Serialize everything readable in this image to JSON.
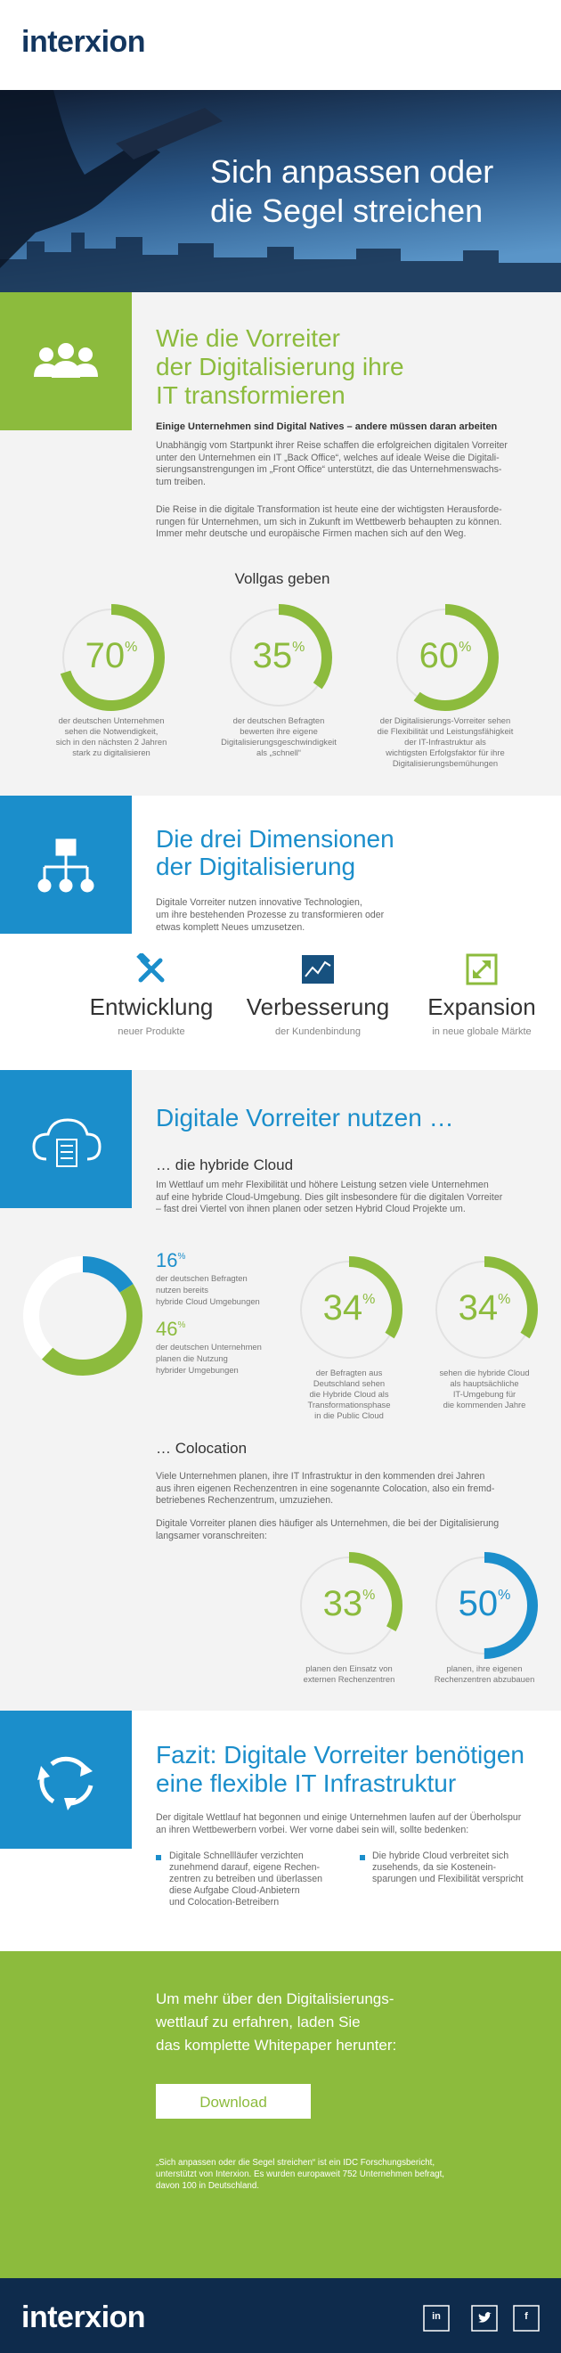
{
  "header": {
    "logo": "interxion"
  },
  "hero": {
    "title": [
      "Sich anpassen oder",
      "die Segel streichen"
    ]
  },
  "digitalization": {
    "title": [
      "Wie die Vorreiter",
      "der Digitalisierung ihre",
      "IT transformieren"
    ],
    "subheading": "Einige Unternehmen sind Digital Natives – andere müssen daran arbeiten",
    "paragraphs": [
      [
        "Unabhängig vom Startpunkt ihrer Reise schaffen die erfolgreichen digitalen Vorreiter",
        "unter den Unternehmen ein IT „Back Office“, welches auf ideale Weise die Digitali-",
        "sierungsanstrengungen im „Front Office“ unterstützt, die das Unternehmenswachs-",
        "tum treiben."
      ],
      [
        "Die Reise in die digitale Transformation ist heute eine der wichtigsten Herausforde-",
        "rungen für Unternehmen, um sich in Zukunft im Wettbewerb behaupten zu können.",
        "Immer mehr deutsche und europäische Firmen machen sich auf den Weg."
      ]
    ],
    "stats_heading": "Vollgas geben",
    "stats": [
      {
        "value": 70,
        "unit": "%",
        "color": "#8cbb3d",
        "caption": [
          "der deutschen Unternehmen",
          "sehen die Notwendigkeit,",
          "sich in den nächsten 2 Jahren",
          "stark zu digitalisieren"
        ]
      },
      {
        "value": 35,
        "unit": "%",
        "color": "#8cbb3d",
        "caption": [
          "der deutschen Befragten",
          "bewerten ihre eigene",
          "Digitalisierungsgeschwindigkeit",
          "als „schnell“"
        ]
      },
      {
        "value": 60,
        "unit": "%",
        "color": "#8cbb3d",
        "caption": [
          "der Digitalisierungs-Vorreiter sehen",
          "die Flexibilität und Leistungsfähigkeit",
          "der IT-Infrastruktur als",
          "wichtigsten Erfolgsfaktor für ihre",
          "Digitalisierungsbemühungen"
        ]
      }
    ]
  },
  "dimensions": {
    "title": [
      "Die drei Dimensionen",
      "der Digitalisierung"
    ],
    "paragraph": [
      "Digitale Vorreiter nutzen innovative Technologien,",
      "um ihre bestehenden Prozesse zu transformieren oder",
      "etwas komplett Neues umzusetzen."
    ],
    "items": [
      {
        "label": "Entwicklung",
        "sublabel": "neuer Produkte"
      },
      {
        "label": "Verbesserung",
        "sublabel": "der Kundenbindung"
      },
      {
        "label": "Expansion",
        "sublabel": "in neue globale Märkte"
      }
    ]
  },
  "usage": {
    "title": "Digitale Vorreiter nutzen …",
    "hybrid_cloud": {
      "heading": "… die hybride Cloud",
      "paragraph": [
        "Im Wettlauf um mehr Flexibilität und höhere Leistung setzen viele Unternehmen",
        "auf eine hybride Cloud-Umgebung. Dies gilt insbesondere für die digitalen Vorreiter",
        "– fast drei Viertel von ihnen planen oder setzen Hybrid Cloud Projekte um."
      ],
      "donut": [
        {
          "value": 16,
          "unit": "%",
          "color": "#1b8ecb",
          "caption": [
            "der deutschen Befragten",
            "nutzen bereits",
            "hybride Cloud Umgebungen"
          ]
        },
        {
          "value": 46,
          "unit": "%",
          "color": "#8cbb3d",
          "caption": [
            "der deutschen Unternehmen",
            "planen die Nutzung",
            "hybrider Umgebungen"
          ]
        }
      ],
      "stats": [
        {
          "value": 34,
          "unit": "%",
          "color": "#8cbb3d",
          "caption": [
            "der Befragten aus",
            "Deutschland sehen",
            "die Hybride Cloud als",
            "Transformationsphase",
            "in die Public Cloud"
          ]
        },
        {
          "value": 34,
          "unit": "%",
          "color": "#8cbb3d",
          "caption": [
            "sehen die hybride Cloud",
            "als hauptsächliche",
            "IT-Umgebung für",
            "die kommenden Jahre"
          ]
        }
      ]
    },
    "colocation": {
      "heading": "… Colocation",
      "paragraphs": [
        [
          "Viele Unternehmen planen, ihre IT Infrastruktur in den kommenden drei Jahren",
          "aus ihren eigenen Rechenzentren in eine sogenannte Colocation, also ein fremd-",
          "betriebenes Rechenzentrum, umzuziehen."
        ],
        [
          "Digitale Vorreiter planen dies häufiger als Unternehmen, die bei der Digitalisierung",
          "langsamer voranschreiten:"
        ]
      ],
      "stats": [
        {
          "value": 33,
          "unit": "%",
          "color": "#8cbb3d",
          "caption": [
            "planen den Einsatz von",
            "externen Rechenzentren"
          ]
        },
        {
          "value": 50,
          "unit": "%",
          "color": "#1b8ecb",
          "caption": [
            "planen, ihre eigenen",
            "Rechenzentren abzubauen"
          ]
        }
      ]
    }
  },
  "conclusion": {
    "title": [
      "Fazit: Digitale Vorreiter benötigen",
      "eine flexible IT Infrastruktur"
    ],
    "paragraph": [
      "Der digitale Wettlauf hat begonnen und einige Unternehmen laufen auf der Überholspur",
      "an ihren Wettbewerbern vorbei. Wer vorne dabei sein will, sollte bedenken:"
    ],
    "bullets": [
      [
        "Digitale Schnellläufer verzichten",
        "zunehmend darauf, eigene Rechen-",
        "zentren zu betreiben und überlassen",
        "diese Aufgabe Cloud-Anbietern",
        "und Colocation-Betreibern"
      ],
      [
        "Die hybride Cloud verbreitet sich",
        "zusehends, da sie Kostenein-",
        "sparungen und Flexibilität verspricht"
      ]
    ]
  },
  "cta": {
    "text": [
      "Um mehr über den Digitalisierungs-",
      "wettlauf zu erfahren, laden Sie",
      "das komplette Whitepaper herunter:"
    ],
    "button": "Download",
    "footnote": [
      "„Sich anpassen oder die Segel streichen“ ist ein IDC Forschungsbericht,",
      "unterstützt von Interxion. Es wurden europaweit 752 Unternehmen befragt,",
      "davon 100 in Deutschland."
    ]
  },
  "footer": {
    "logo": "interxion",
    "social": [
      "in",
      "f"
    ]
  }
}
